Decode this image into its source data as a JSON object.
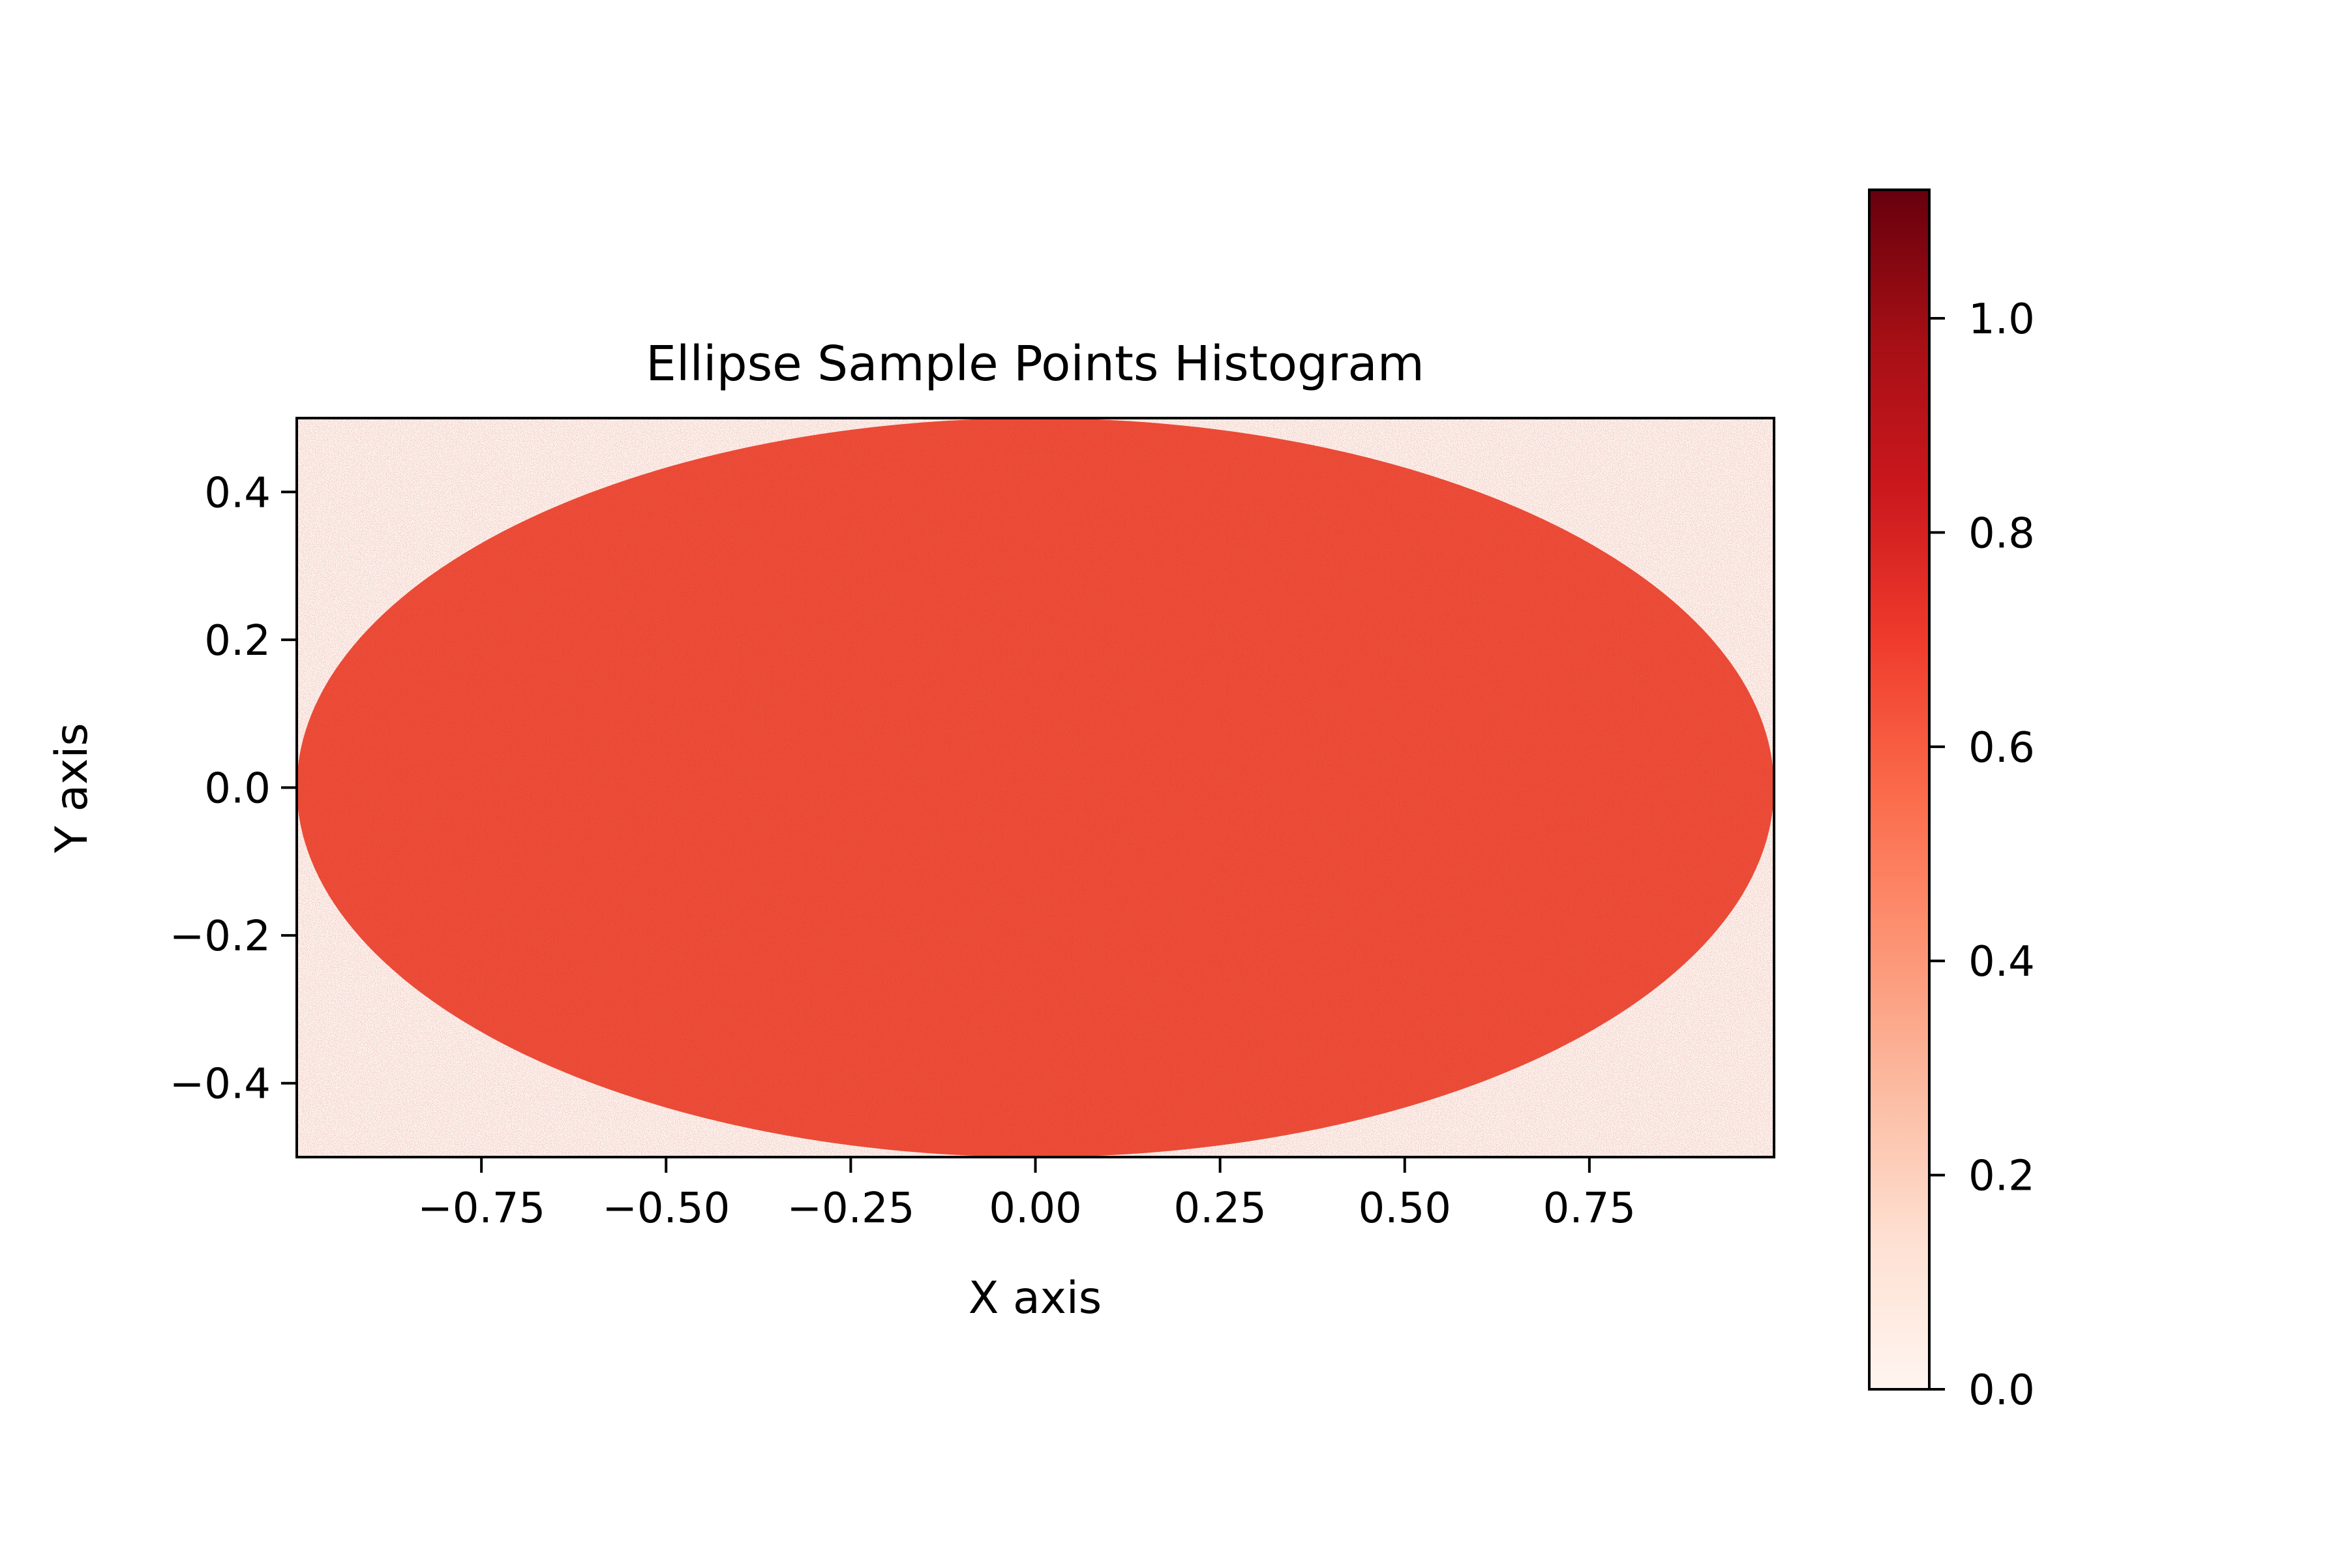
{
  "chart_data": {
    "type": "heatmap",
    "title": "Ellipse Sample Points Histogram",
    "xlabel": "X axis",
    "ylabel": "Y axis",
    "xlim": [
      -1.0,
      1.0
    ],
    "ylim": [
      -0.5,
      0.5
    ],
    "x_ticks": [
      -0.75,
      -0.5,
      -0.25,
      0.0,
      0.25,
      0.5,
      0.75
    ],
    "x_tick_labels": [
      "−0.75",
      "−0.50",
      "−0.25",
      "0.00",
      "0.25",
      "0.50",
      "0.75"
    ],
    "y_ticks": [
      -0.4,
      -0.2,
      0.0,
      0.2,
      0.4
    ],
    "y_tick_labels": [
      "−0.4",
      "−0.2",
      "0.0",
      "0.2",
      "0.4"
    ],
    "ellipse": {
      "center": [
        0.0,
        0.0
      ],
      "semi_axis_x": 1.0,
      "semi_axis_y": 0.5,
      "inside_density_mean": 0.64,
      "inside_density_range": [
        0.5,
        0.8
      ],
      "outside_density": 0.0
    },
    "grid": false,
    "colormap": "Reds",
    "colorbar": {
      "range": [
        0.0,
        1.12
      ],
      "ticks": [
        0.0,
        0.2,
        0.4,
        0.6,
        0.8,
        1.0
      ],
      "tick_labels": [
        "0.0",
        "0.2",
        "0.4",
        "0.6",
        "0.8",
        "1.0"
      ],
      "stops": [
        {
          "t": 0.0,
          "color": "#fff5f0"
        },
        {
          "t": 0.125,
          "color": "#fee0d2"
        },
        {
          "t": 0.25,
          "color": "#fcbba1"
        },
        {
          "t": 0.375,
          "color": "#fc9272"
        },
        {
          "t": 0.5,
          "color": "#fb6a4a"
        },
        {
          "t": 0.625,
          "color": "#ef3b2c"
        },
        {
          "t": 0.75,
          "color": "#cb181d"
        },
        {
          "t": 0.875,
          "color": "#a50f15"
        },
        {
          "t": 1.0,
          "color": "#67000d"
        }
      ]
    },
    "colors": {
      "ellipse_fill": "#ef4a35",
      "background_fill": "#fff5f0"
    }
  }
}
